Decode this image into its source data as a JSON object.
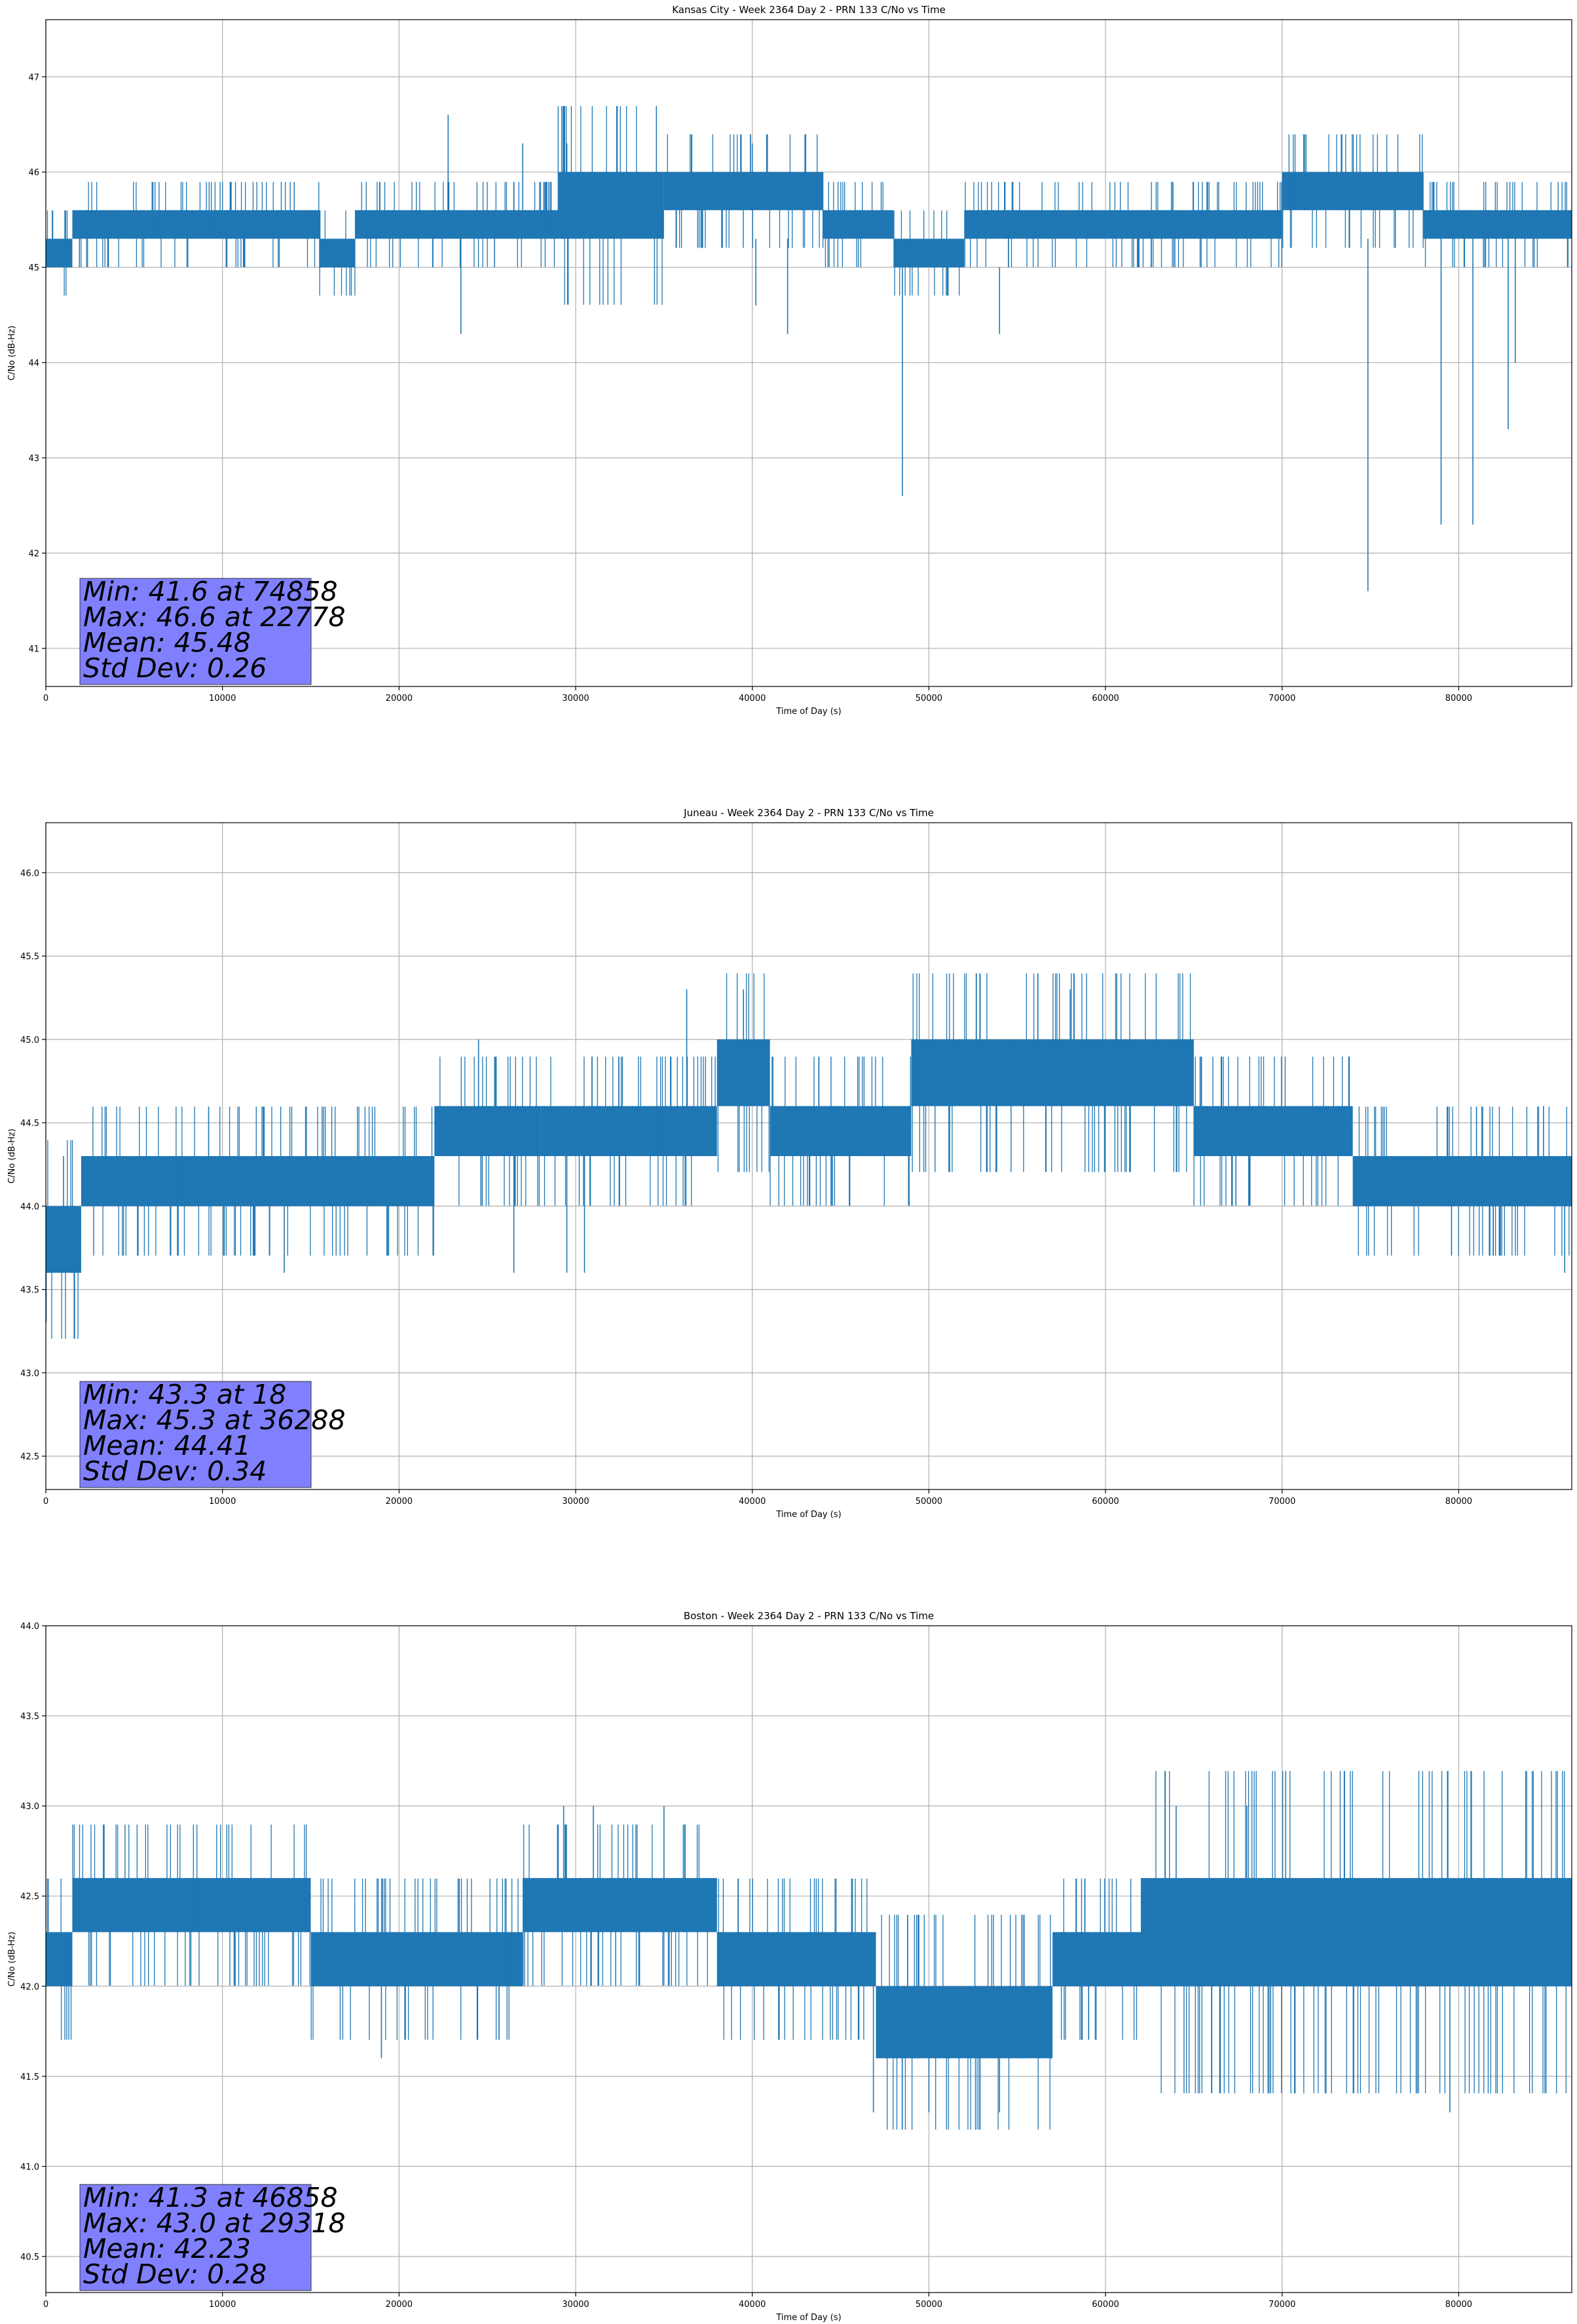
{
  "colors": {
    "series": "#1f77b4",
    "grid": "#b0b0b0",
    "stats_box_fill": "#8080ff",
    "axes": "#000000",
    "background": "#ffffff"
  },
  "chart_data": [
    {
      "type": "line",
      "title": "Kansas City - Week 2364 Day 2 - PRN 133 C/No vs Time",
      "xlabel": "Time of Day (s)",
      "ylabel": "C/No (dB-Hz)",
      "xlim": [
        0,
        86400
      ],
      "ylim": [
        40.6,
        47.6
      ],
      "xticks": [
        0,
        10000,
        20000,
        30000,
        40000,
        50000,
        60000,
        70000,
        80000
      ],
      "yticks": [
        41,
        42,
        43,
        44,
        45,
        46,
        47
      ],
      "ytick_labels": [
        "41",
        "42",
        "43",
        "44",
        "45",
        "46",
        "47"
      ],
      "grid": true,
      "stats": {
        "min_line": "Min: 41.6 at 74858",
        "max_line": "Max: 46.6 at 22778",
        "mean_line": "Mean: 45.48",
        "std_line": "Std Dev: 0.26"
      },
      "bands": [
        {
          "x0": 0,
          "x1": 1500,
          "lo": 45.0,
          "hi": 45.3
        },
        {
          "x0": 1500,
          "x1": 15500,
          "lo": 45.3,
          "hi": 45.6
        },
        {
          "x0": 15500,
          "x1": 17500,
          "lo": 45.0,
          "hi": 45.3
        },
        {
          "x0": 17500,
          "x1": 29000,
          "lo": 45.3,
          "hi": 45.6
        },
        {
          "x0": 29000,
          "x1": 35000,
          "lo": 45.3,
          "hi": 46.0
        },
        {
          "x0": 35000,
          "x1": 44000,
          "lo": 45.6,
          "hi": 46.0
        },
        {
          "x0": 44000,
          "x1": 48000,
          "lo": 45.3,
          "hi": 45.6
        },
        {
          "x0": 48000,
          "x1": 52000,
          "lo": 45.0,
          "hi": 45.3
        },
        {
          "x0": 52000,
          "x1": 70000,
          "lo": 45.3,
          "hi": 45.6
        },
        {
          "x0": 70000,
          "x1": 78000,
          "lo": 45.6,
          "hi": 46.0
        },
        {
          "x0": 78000,
          "x1": 86400,
          "lo": 45.3,
          "hi": 45.6
        }
      ],
      "spikes": [
        {
          "x": 22778,
          "lo": 45.3,
          "hi": 46.6
        },
        {
          "x": 23500,
          "lo": 44.3,
          "hi": 45.3
        },
        {
          "x": 27000,
          "lo": 45.6,
          "hi": 46.3
        },
        {
          "x": 29500,
          "lo": 45.6,
          "hi": 46.3
        },
        {
          "x": 40000,
          "lo": 45.6,
          "hi": 46.3
        },
        {
          "x": 40200,
          "lo": 44.6,
          "hi": 45.3
        },
        {
          "x": 42000,
          "lo": 44.3,
          "hi": 45.3
        },
        {
          "x": 48500,
          "lo": 42.6,
          "hi": 45.0
        },
        {
          "x": 54000,
          "lo": 44.3,
          "hi": 45.0
        },
        {
          "x": 74858,
          "lo": 41.6,
          "hi": 45.3
        },
        {
          "x": 79000,
          "lo": 42.3,
          "hi": 45.3
        },
        {
          "x": 80800,
          "lo": 42.3,
          "hi": 45.3
        },
        {
          "x": 82800,
          "lo": 43.3,
          "hi": 45.3
        },
        {
          "x": 83200,
          "lo": 44.0,
          "hi": 45.3
        }
      ]
    },
    {
      "type": "line",
      "title": "Juneau - Week 2364 Day 2 - PRN 133 C/No vs Time",
      "xlabel": "Time of Day (s)",
      "ylabel": "C/No (dB-Hz)",
      "xlim": [
        0,
        86400
      ],
      "ylim": [
        42.3,
        46.3
      ],
      "xticks": [
        0,
        10000,
        20000,
        30000,
        40000,
        50000,
        60000,
        70000,
        80000
      ],
      "yticks": [
        42.5,
        43.0,
        43.5,
        44.0,
        44.5,
        45.0,
        45.5,
        46.0
      ],
      "ytick_labels": [
        "42.5",
        "43.0",
        "43.5",
        "44.0",
        "44.5",
        "45.0",
        "45.5",
        "46.0"
      ],
      "grid": true,
      "stats": {
        "min_line": "Min: 43.3 at 18",
        "max_line": "Max: 45.3 at 36288",
        "mean_line": "Mean: 44.41",
        "std_line": "Std Dev: 0.34"
      },
      "bands": [
        {
          "x0": 0,
          "x1": 2000,
          "lo": 43.6,
          "hi": 44.0
        },
        {
          "x0": 2000,
          "x1": 22000,
          "lo": 44.0,
          "hi": 44.3
        },
        {
          "x0": 22000,
          "x1": 28000,
          "lo": 44.3,
          "hi": 44.6
        },
        {
          "x0": 28000,
          "x1": 38000,
          "lo": 44.3,
          "hi": 44.6
        },
        {
          "x0": 38000,
          "x1": 41000,
          "lo": 44.6,
          "hi": 45.0
        },
        {
          "x0": 41000,
          "x1": 49000,
          "lo": 44.3,
          "hi": 44.6
        },
        {
          "x0": 49000,
          "x1": 65000,
          "lo": 44.6,
          "hi": 45.0
        },
        {
          "x0": 65000,
          "x1": 74000,
          "lo": 44.3,
          "hi": 44.6
        },
        {
          "x0": 74000,
          "x1": 86400,
          "lo": 44.0,
          "hi": 44.3
        }
      ],
      "spikes": [
        {
          "x": 18,
          "lo": 43.3,
          "hi": 44.0
        },
        {
          "x": 1000,
          "lo": 43.6,
          "hi": 44.3
        },
        {
          "x": 13500,
          "lo": 43.6,
          "hi": 44.0
        },
        {
          "x": 24500,
          "lo": 44.3,
          "hi": 45.0
        },
        {
          "x": 26500,
          "lo": 43.6,
          "hi": 44.3
        },
        {
          "x": 29500,
          "lo": 43.6,
          "hi": 44.3
        },
        {
          "x": 30500,
          "lo": 43.6,
          "hi": 44.3
        },
        {
          "x": 36288,
          "lo": 44.6,
          "hi": 45.3
        },
        {
          "x": 39500,
          "lo": 44.6,
          "hi": 45.3
        },
        {
          "x": 58000,
          "lo": 45.0,
          "hi": 45.3
        },
        {
          "x": 84800,
          "lo": 44.3,
          "hi": 44.6
        },
        {
          "x": 86000,
          "lo": 43.6,
          "hi": 44.3
        }
      ]
    },
    {
      "type": "line",
      "title": "Boston - Week 2364 Day 2 - PRN 133 C/No vs Time",
      "xlabel": "Time of Day (s)",
      "ylabel": "C/No (dB-Hz)",
      "xlim": [
        0,
        86400
      ],
      "ylim": [
        40.3,
        44.0
      ],
      "xticks": [
        0,
        10000,
        20000,
        30000,
        40000,
        50000,
        60000,
        70000,
        80000
      ],
      "yticks": [
        40.5,
        41.0,
        41.5,
        42.0,
        42.5,
        43.0,
        43.5,
        44.0
      ],
      "ytick_labels": [
        "40.5",
        "41.0",
        "41.5",
        "42.0",
        "42.5",
        "43.0",
        "43.5",
        "44.0"
      ],
      "grid": true,
      "stats": {
        "min_line": "Min: 41.3 at 46858",
        "max_line": "Max: 43.0 at 29318",
        "mean_line": "Mean: 42.23",
        "std_line": "Std Dev: 0.28"
      },
      "bands": [
        {
          "x0": 0,
          "x1": 1500,
          "lo": 42.0,
          "hi": 42.3
        },
        {
          "x0": 1500,
          "x1": 15000,
          "lo": 42.3,
          "hi": 42.6
        },
        {
          "x0": 15000,
          "x1": 27000,
          "lo": 42.0,
          "hi": 42.3
        },
        {
          "x0": 27000,
          "x1": 38000,
          "lo": 42.3,
          "hi": 42.6
        },
        {
          "x0": 38000,
          "x1": 47000,
          "lo": 42.0,
          "hi": 42.3
        },
        {
          "x0": 47000,
          "x1": 57000,
          "lo": 41.6,
          "hi": 42.0
        },
        {
          "x0": 57000,
          "x1": 62000,
          "lo": 42.0,
          "hi": 42.3
        },
        {
          "x0": 62000,
          "x1": 86400,
          "lo": 42.0,
          "hi": 42.6
        }
      ],
      "spikes": [
        {
          "x": 19000,
          "lo": 41.6,
          "hi": 42.3
        },
        {
          "x": 29318,
          "lo": 42.6,
          "hi": 43.0
        },
        {
          "x": 31000,
          "lo": 42.6,
          "hi": 43.0
        },
        {
          "x": 35000,
          "lo": 42.6,
          "hi": 43.0
        },
        {
          "x": 46858,
          "lo": 41.3,
          "hi": 42.0
        },
        {
          "x": 50000,
          "lo": 41.3,
          "hi": 41.6
        },
        {
          "x": 54000,
          "lo": 41.3,
          "hi": 41.6
        },
        {
          "x": 64000,
          "lo": 42.6,
          "hi": 43.0
        },
        {
          "x": 68000,
          "lo": 42.6,
          "hi": 43.0
        },
        {
          "x": 79500,
          "lo": 41.3,
          "hi": 42.0
        }
      ]
    }
  ]
}
